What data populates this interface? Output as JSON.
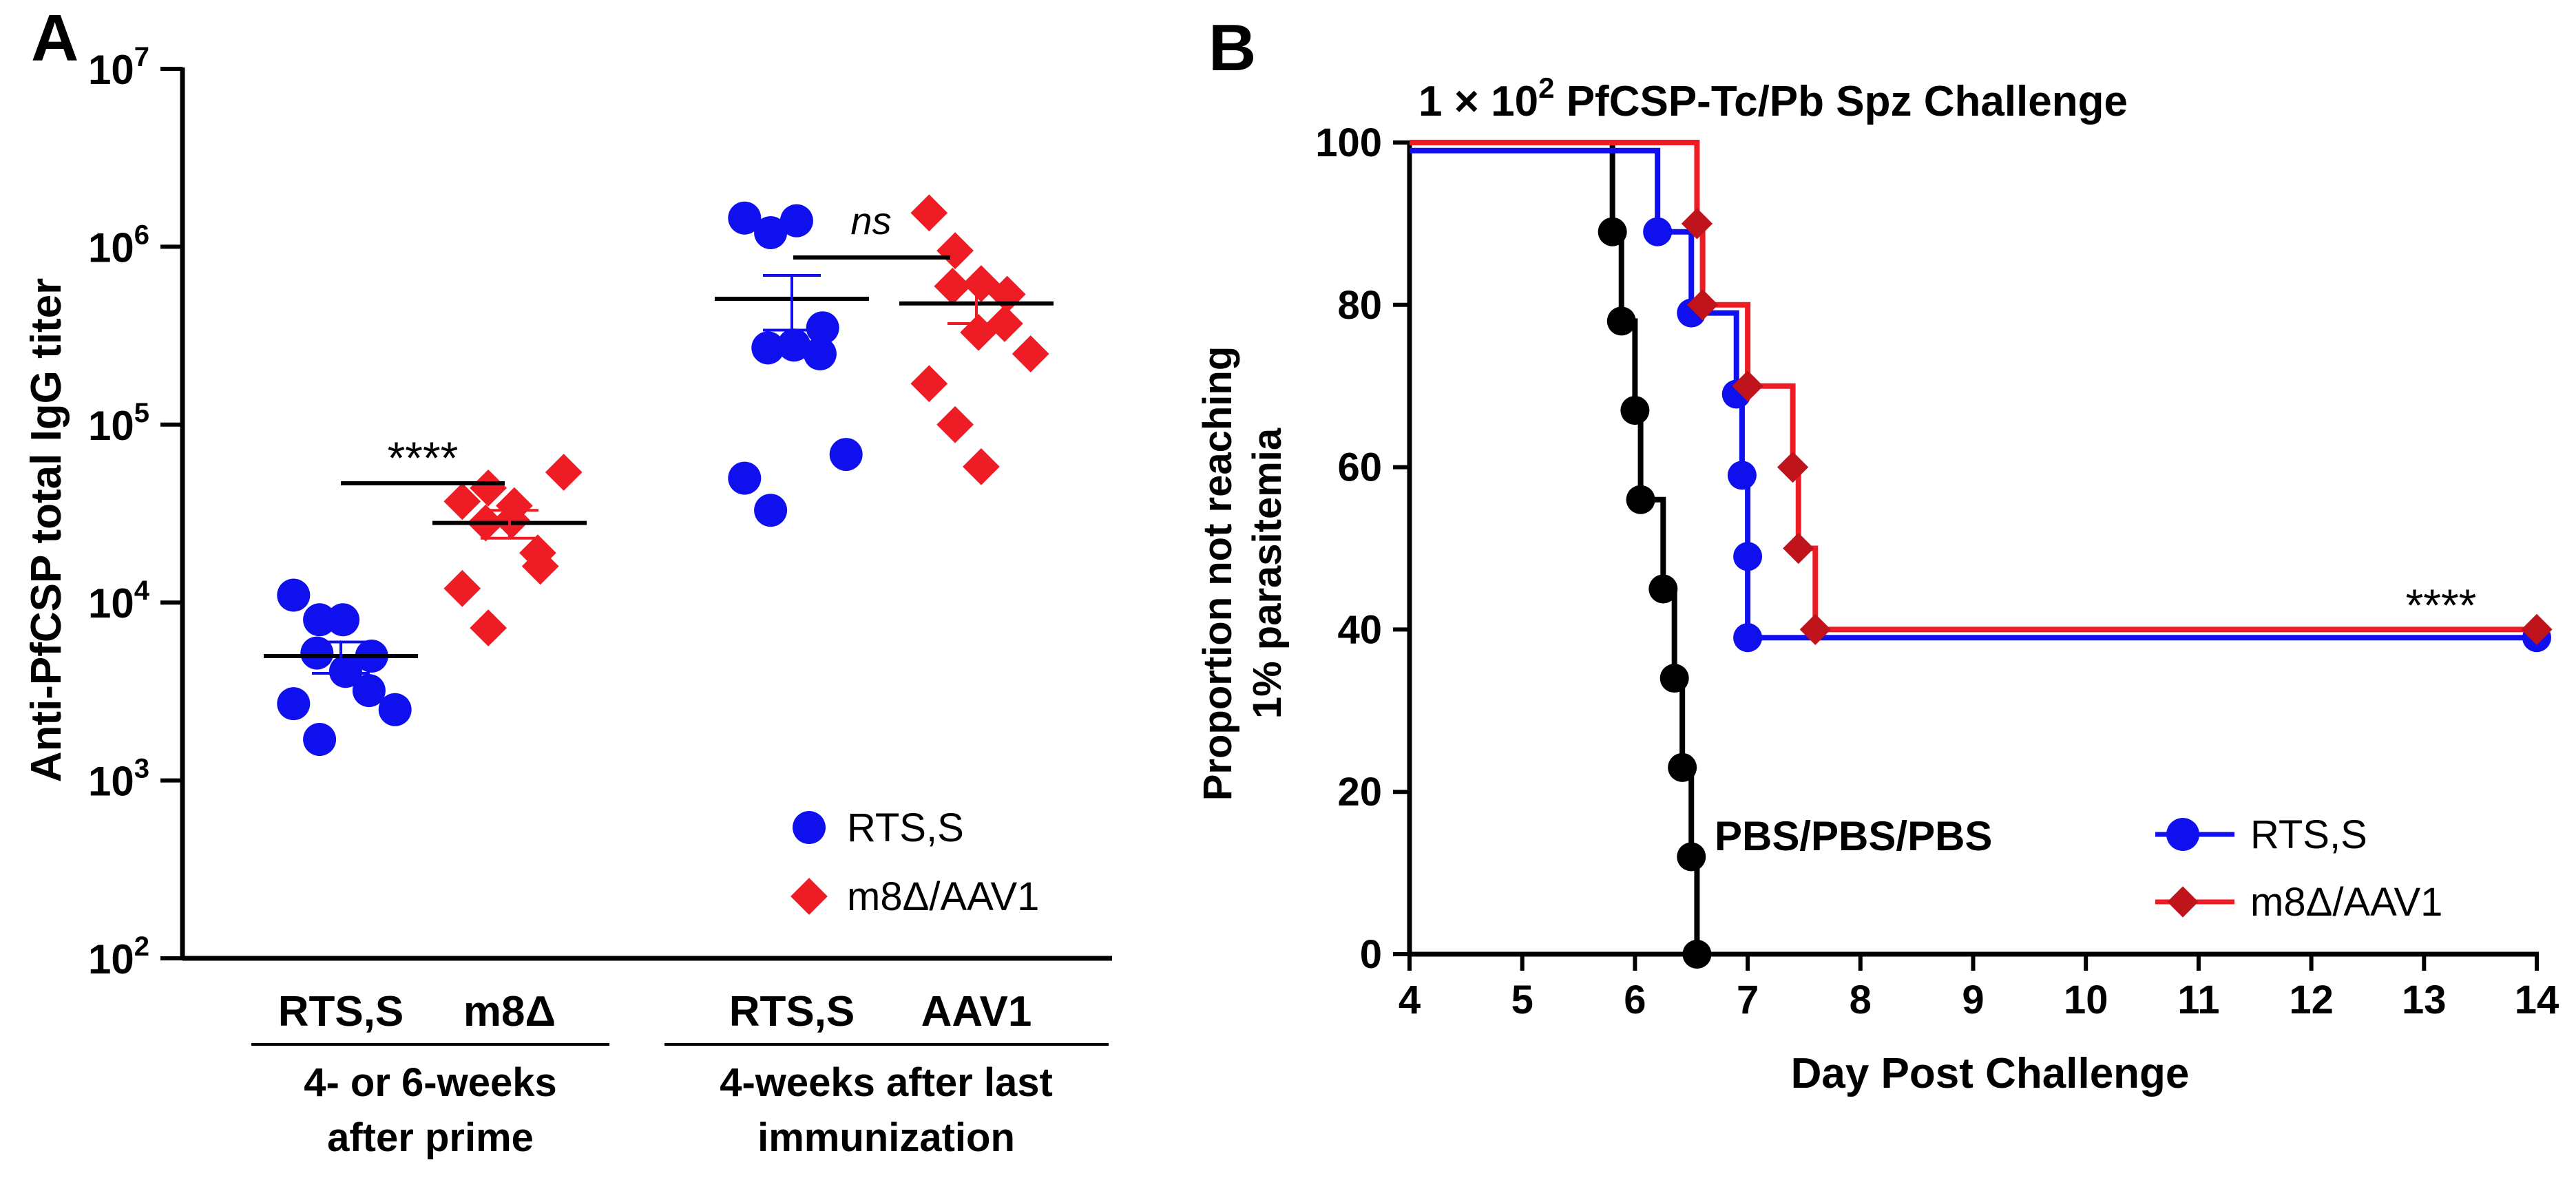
{
  "panels": {
    "a": "A",
    "b": "B"
  },
  "chart_data": [
    {
      "type": "scatter",
      "panel": "A",
      "ylabel": "Anti-PfCSP total IgG  titer",
      "yscale": "log",
      "ylim": [
        100,
        10000000
      ],
      "ytick_exponents": [
        "2",
        "3",
        "4",
        "5",
        "6",
        "7"
      ],
      "ytick_base": "10",
      "groups": [
        {
          "label": "RTS,S",
          "series": "RTS,S",
          "cluster": 0,
          "mean": 5000,
          "sem_low": 4000,
          "sem_high": 6000,
          "values": [
            11000,
            8000,
            4100,
            5000,
            5200,
            8000,
            3200,
            2500,
            2700,
            1700
          ]
        },
        {
          "label": "m8Δ",
          "series": "m8Δ/AAV1",
          "cluster": 0,
          "mean": 28000,
          "sem_low": 23000,
          "sem_high": 33000,
          "values": [
            37000,
            44000,
            35000,
            16000,
            28000,
            29000,
            19000,
            54000,
            12000,
            7200
          ]
        },
        {
          "label": "RTS,S",
          "series": "RTS,S",
          "cluster": 1,
          "mean": 510000,
          "sem_low": 340000,
          "sem_high": 690000,
          "values": [
            1450000,
            1200000,
            1400000,
            350000,
            270000,
            280000,
            250000,
            68000,
            50000,
            33000
          ]
        },
        {
          "label": "AAV1",
          "series": "m8Δ/AAV1",
          "cluster": 1,
          "mean": 480000,
          "sem_low": 370000,
          "sem_high": 610000,
          "values": [
            1550000,
            950000,
            620000,
            540000,
            600000,
            330000,
            370000,
            250000,
            170000,
            100000,
            58000
          ]
        }
      ],
      "group_labels": [
        {
          "line1": "4- or 6-weeks",
          "line2": "after prime"
        },
        {
          "line1": "4-weeks after last",
          "line2": "immunization"
        }
      ],
      "annotations": {
        "left": "****",
        "right": "ns"
      },
      "legend": {
        "position": "bottom-right",
        "entries": [
          "RTS,S",
          "m8Δ/AAV1"
        ]
      },
      "colors": {
        "rtss": "#1010ee",
        "m8": "#ee1c24"
      }
    },
    {
      "type": "line",
      "panel": "B",
      "title_prefix": "1 × 10",
      "title_sup": "2",
      "title_suffix": " PfCSP-Tc/Pb Spz Challenge",
      "xlabel": "Day Post Challenge",
      "ylabel_lines": [
        "Proportion not reaching",
        "1% parasitemia"
      ],
      "xlim": [
        4,
        14
      ],
      "ylim": [
        0,
        100
      ],
      "xticks": [
        "4",
        "5",
        "6",
        "7",
        "8",
        "9",
        "10",
        "11",
        "12",
        "13",
        "14"
      ],
      "yticks": [
        "0",
        "20",
        "40",
        "60",
        "80",
        "100"
      ],
      "series": [
        {
          "name": "PBS/PBS/PBS",
          "color": "#000000",
          "marker": "circle",
          "steps": [
            [
              4,
              100
            ],
            [
              5.8,
              89
            ],
            [
              5.88,
              78
            ],
            [
              6.0,
              67
            ],
            [
              6.05,
              56
            ],
            [
              6.25,
              45
            ],
            [
              6.35,
              34
            ],
            [
              6.42,
              23
            ],
            [
              6.5,
              12
            ],
            [
              6.55,
              0
            ]
          ]
        },
        {
          "name": "RTS,S",
          "color": "#1010ee",
          "marker": "circle",
          "steps": [
            [
              4,
              99
            ],
            [
              6.2,
              89
            ],
            [
              6.5,
              79
            ],
            [
              6.9,
              69
            ],
            [
              6.95,
              59
            ],
            [
              7.0,
              49
            ],
            [
              7.0,
              39
            ],
            [
              14,
              39
            ]
          ]
        },
        {
          "name": "m8Δ/AAV1",
          "color": "#ee1c24",
          "marker_color": "#c0141c",
          "marker": "diamond",
          "steps": [
            [
              4,
              100
            ],
            [
              6.55,
              90
            ],
            [
              6.6,
              80
            ],
            [
              7.0,
              70
            ],
            [
              7.4,
              60
            ],
            [
              7.45,
              50
            ],
            [
              7.6,
              40
            ],
            [
              14,
              40
            ]
          ]
        }
      ],
      "annotations": {
        "significance": "****",
        "pbs_label": "PBS/PBS/PBS"
      },
      "legend": {
        "position": "bottom-right",
        "entries": [
          "RTS,S",
          "m8Δ/AAV1"
        ]
      }
    }
  ]
}
